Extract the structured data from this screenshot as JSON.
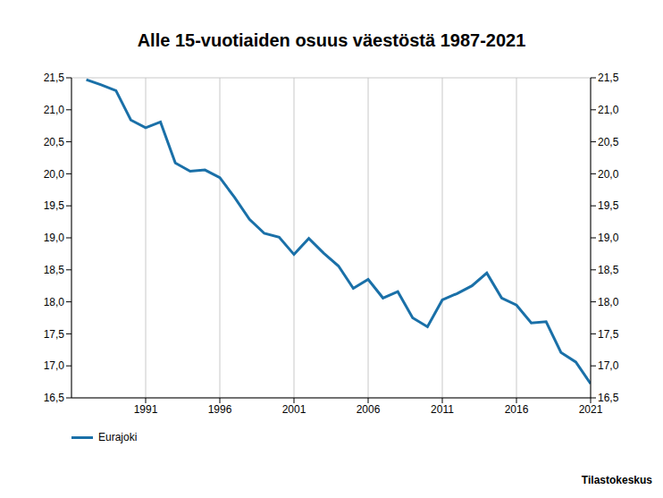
{
  "chart_data": {
    "type": "line",
    "title": "Alle 15-vuotiaiden osuus väestöstä 1987-2021",
    "source": "Tilastokeskus",
    "x": [
      1987,
      1988,
      1989,
      1990,
      1991,
      1992,
      1993,
      1994,
      1995,
      1996,
      1997,
      1998,
      1999,
      2000,
      2001,
      2002,
      2003,
      2004,
      2005,
      2006,
      2007,
      2008,
      2009,
      2010,
      2011,
      2012,
      2013,
      2014,
      2015,
      2016,
      2017,
      2018,
      2019,
      2020,
      2021
    ],
    "series": [
      {
        "name": "Eurajoki",
        "color": "#1a70a8",
        "values": [
          21.47,
          21.39,
          21.3,
          20.84,
          20.72,
          20.81,
          20.17,
          20.04,
          20.06,
          19.94,
          19.63,
          19.29,
          19.07,
          19.01,
          18.74,
          18.99,
          18.76,
          18.56,
          18.21,
          18.35,
          18.06,
          18.16,
          17.75,
          17.61,
          18.03,
          18.13,
          18.25,
          18.45,
          18.06,
          17.95,
          17.67,
          17.69,
          17.21,
          17.06,
          16.72
        ]
      }
    ],
    "xlim": [
      1986,
      2021
    ],
    "xticks": [
      1991,
      1996,
      2001,
      2006,
      2011,
      2016,
      2021
    ],
    "ylim": [
      16.5,
      21.5
    ],
    "yticks": [
      {
        "value": 16.5,
        "label": "16,5"
      },
      {
        "value": 17,
        "label": "17,0"
      },
      {
        "value": 17.5,
        "label": "17,5"
      },
      {
        "value": 18,
        "label": "18,0"
      },
      {
        "value": 18.5,
        "label": "18,5"
      },
      {
        "value": 19,
        "label": "19,0"
      },
      {
        "value": 19.5,
        "label": "19,5"
      },
      {
        "value": 20,
        "label": "20,0"
      },
      {
        "value": 20.5,
        "label": "20,5"
      },
      {
        "value": 21,
        "label": "21,0"
      },
      {
        "value": 21.5,
        "label": "21,5"
      }
    ],
    "y2lim": [
      16.5,
      21.5
    ],
    "y2ticks": [
      {
        "value": 16.5,
        "label": "16,5"
      },
      {
        "value": 17,
        "label": "17,0"
      },
      {
        "value": 17.5,
        "label": "17,5"
      },
      {
        "value": 18,
        "label": "18,0"
      },
      {
        "value": 18.5,
        "label": "18,5"
      },
      {
        "value": 19,
        "label": "19,0"
      },
      {
        "value": 19.5,
        "label": "19,5"
      },
      {
        "value": 20,
        "label": "20,0"
      },
      {
        "value": 20.5,
        "label": "20,5"
      },
      {
        "value": 21,
        "label": "21,0"
      },
      {
        "value": 21.5,
        "label": "21,5"
      }
    ],
    "grid": true,
    "legend": "bottom left"
  }
}
